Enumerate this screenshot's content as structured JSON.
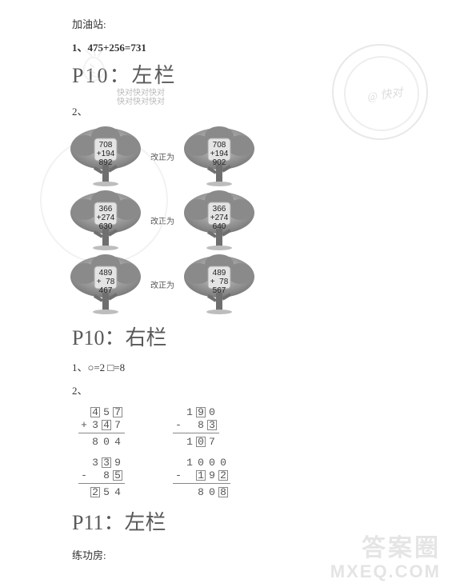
{
  "top": {
    "station": "加油站:",
    "q1": "1、475+256=731"
  },
  "p10L": {
    "heading": "P10：左栏",
    "tiny1": "快对快对快对",
    "tiny2": "快对快对快对",
    "q2": "2、",
    "correct": "改正为",
    "trees": [
      {
        "a": "708",
        "b": "+194",
        "r": "892",
        "type": "+"
      },
      {
        "a": "708",
        "b": "+194",
        "r": "902",
        "type": "+"
      },
      {
        "a": "366",
        "b": "+274",
        "r": "630",
        "type": "+"
      },
      {
        "a": "366",
        "b": "+274",
        "r": "640",
        "type": "+"
      },
      {
        "a": "489",
        "b": "+  78",
        "r": "467",
        "type": "+"
      },
      {
        "a": "489",
        "b": "+  78",
        "r": "567",
        "type": "+"
      }
    ]
  },
  "p10R": {
    "heading": "P10：右栏",
    "q1": "1、○=2    □=8",
    "q2": "2、",
    "calcs": [
      {
        "rows": [
          {
            "op": "",
            "digits": [
              {
                "v": "4",
                "b": true
              },
              {
                "v": "5",
                "b": false
              },
              {
                "v": "7",
                "b": true
              }
            ]
          },
          {
            "op": "+",
            "digits": [
              {
                "v": "3",
                "b": false
              },
              {
                "v": "4",
                "b": true
              },
              {
                "v": "7",
                "b": false
              }
            ]
          },
          {
            "op": "",
            "digits": [
              {
                "v": "8",
                "b": false
              },
              {
                "v": "0",
                "b": false
              },
              {
                "v": "4",
                "b": false
              }
            ]
          }
        ],
        "cols": 3
      },
      {
        "rows": [
          {
            "op": "",
            "digits": [
              {
                "v": "1",
                "b": false
              },
              {
                "v": "9",
                "b": true
              },
              {
                "v": "0",
                "b": false
              }
            ]
          },
          {
            "op": "-",
            "digits": [
              {
                "v": "",
                "b": false
              },
              {
                "v": "8",
                "b": false
              },
              {
                "v": "3",
                "b": true
              }
            ]
          },
          {
            "op": "",
            "digits": [
              {
                "v": "1",
                "b": false
              },
              {
                "v": "0",
                "b": true
              },
              {
                "v": "7",
                "b": false
              }
            ]
          }
        ],
        "cols": 3
      },
      {
        "rows": [
          {
            "op": "",
            "digits": [
              {
                "v": "3",
                "b": false
              },
              {
                "v": "3",
                "b": true
              },
              {
                "v": "9",
                "b": false
              }
            ]
          },
          {
            "op": "-",
            "digits": [
              {
                "v": "",
                "b": false
              },
              {
                "v": "8",
                "b": false
              },
              {
                "v": "5",
                "b": true
              }
            ]
          },
          {
            "op": "",
            "digits": [
              {
                "v": "2",
                "b": true
              },
              {
                "v": "5",
                "b": false
              },
              {
                "v": "4",
                "b": false
              }
            ]
          }
        ],
        "cols": 3
      },
      {
        "rows": [
          {
            "op": "",
            "digits": [
              {
                "v": "1",
                "b": false
              },
              {
                "v": "0",
                "b": false
              },
              {
                "v": "0",
                "b": false
              },
              {
                "v": "0",
                "b": false
              }
            ]
          },
          {
            "op": "-",
            "digits": [
              {
                "v": "",
                "b": false
              },
              {
                "v": "1",
                "b": true
              },
              {
                "v": "9",
                "b": false
              },
              {
                "v": "2",
                "b": true
              }
            ]
          },
          {
            "op": "",
            "digits": [
              {
                "v": "",
                "b": false
              },
              {
                "v": "8",
                "b": false
              },
              {
                "v": "0",
                "b": false
              },
              {
                "v": "8",
                "b": true
              }
            ]
          }
        ],
        "cols": 4
      }
    ]
  },
  "p11L": {
    "heading": "P11：左栏",
    "label": "练功房:"
  },
  "watermarks": {
    "circle_text": "@ 快对",
    "brand": "答案圈",
    "url": "MXEQ.COM"
  },
  "colors": {
    "text": "#333333",
    "heading": "#595959",
    "muted": "#b9b9b9",
    "rule": "#888888",
    "wm": "#e5e5e5",
    "bg": "#ffffff"
  }
}
